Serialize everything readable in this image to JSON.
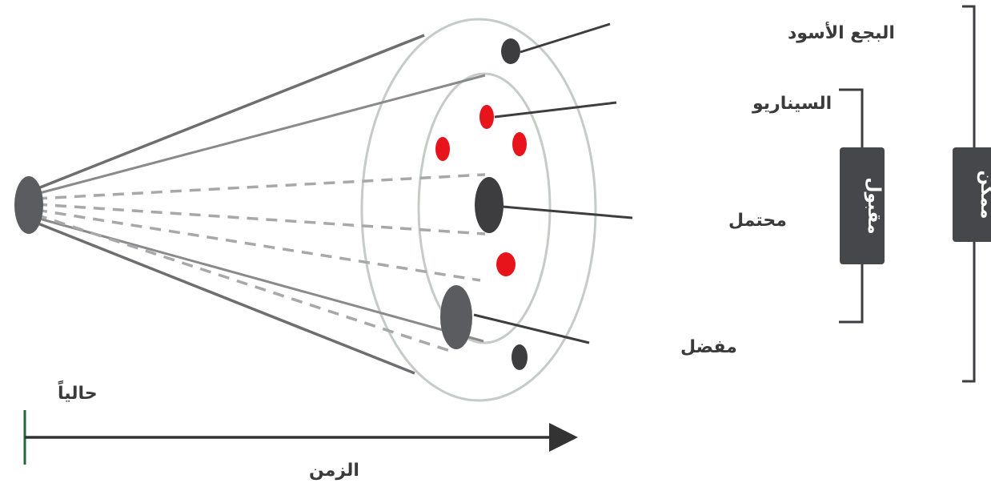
{
  "labels": {
    "black_swan": "البجع الأسود",
    "scenario": "السيناريو",
    "probable": "محتمل",
    "preferred": "مفضل",
    "now": "حالياً",
    "time": "الزمن",
    "plausible": "مقبول",
    "possible": "ممكن"
  },
  "colors": {
    "dark_node": "#3d3d40",
    "gray_node": "#5a5c60",
    "scenario_dot": "#e8141c",
    "ring": "#c5cbc7",
    "cone_line": "#6e6e70",
    "dashed_line": "#a8a8aa",
    "label_box": "#46474b",
    "axis": "#333333",
    "now_marker": "#1e6b3a"
  }
}
